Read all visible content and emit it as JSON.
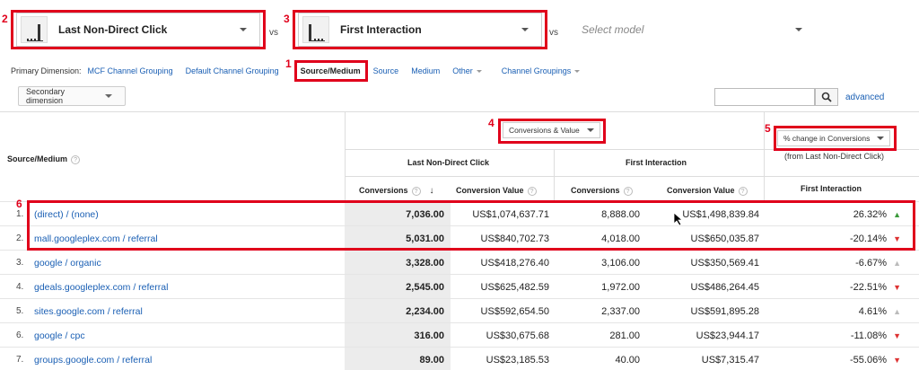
{
  "models": {
    "model1": "Last Non-Direct Click",
    "model2": "First Interaction",
    "model3_placeholder": "Select model",
    "vs": "vs"
  },
  "primary_dimension": {
    "label": "Primary Dimension:",
    "items": [
      "MCF Channel Grouping",
      "Default Channel Grouping",
      "Source/Medium",
      "Source",
      "Medium",
      "Other",
      "Channel Groupings"
    ],
    "active": "Source/Medium"
  },
  "toolbar": {
    "secondary_dimension": "Secondary dimension",
    "advanced": "advanced"
  },
  "annotations": [
    "1",
    "2",
    "3",
    "4",
    "5",
    "6"
  ],
  "table": {
    "dim_header": "Source/Medium",
    "metric_dropdown": "Conversions & Value",
    "compare_dropdown": "% change in Conversions",
    "compare_sub": "(from Last Non-Direct Click)",
    "group1": "Last Non-Direct Click",
    "group2": "First Interaction",
    "group3": "First Interaction",
    "col_conversions": "Conversions",
    "col_value": "Conversion Value",
    "rows": [
      {
        "idx": "1.",
        "source": "(direct) / (none)",
        "c1": "7,036.00",
        "v1": "US$1,074,637.71",
        "c2": "8,888.00",
        "v2": "US$1,498,839.84",
        "pct": "26.32%",
        "dir": "up"
      },
      {
        "idx": "2.",
        "source": "mall.googleplex.com / referral",
        "c1": "5,031.00",
        "v1": "US$840,702.73",
        "c2": "4,018.00",
        "v2": "US$650,035.87",
        "pct": "-20.14%",
        "dir": "down"
      },
      {
        "idx": "3.",
        "source": "google / organic",
        "c1": "3,328.00",
        "v1": "US$418,276.40",
        "c2": "3,106.00",
        "v2": "US$350,569.41",
        "pct": "-6.67%",
        "dir": "flat"
      },
      {
        "idx": "4.",
        "source": "gdeals.googleplex.com / referral",
        "c1": "2,545.00",
        "v1": "US$625,482.59",
        "c2": "1,972.00",
        "v2": "US$486,264.45",
        "pct": "-22.51%",
        "dir": "down"
      },
      {
        "idx": "5.",
        "source": "sites.google.com / referral",
        "c1": "2,234.00",
        "v1": "US$592,654.50",
        "c2": "2,337.00",
        "v2": "US$591,895.28",
        "pct": "4.61%",
        "dir": "flat"
      },
      {
        "idx": "6.",
        "source": "google / cpc",
        "c1": "316.00",
        "v1": "US$30,675.68",
        "c2": "281.00",
        "v2": "US$23,944.17",
        "pct": "-11.08%",
        "dir": "down"
      },
      {
        "idx": "7.",
        "source": "groups.google.com / referral",
        "c1": "89.00",
        "v1": "US$23,185.53",
        "c2": "40.00",
        "v2": "US$7,315.47",
        "pct": "-55.06%",
        "dir": "down"
      }
    ]
  },
  "colors": {
    "accent_red": "#e0001b",
    "link": "#1a5fb4",
    "up": "#3a9a3a",
    "down": "#d33",
    "flat": "#bbb"
  }
}
